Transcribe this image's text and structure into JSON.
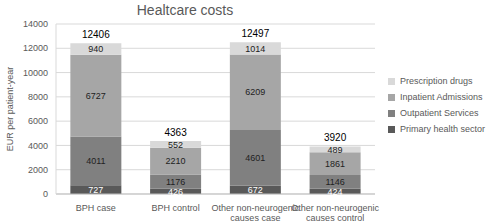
{
  "chart_data": {
    "type": "bar",
    "title": "Healtcare costs",
    "y_label": "EUR per patient-year",
    "categories": [
      "BPH case",
      "BPH control",
      "Other non-neurogenic causes case",
      "Other non-neurogenic causes control"
    ],
    "series": [
      {
        "name": "Primary health sector",
        "color": "#595959",
        "values": [
          727,
          426,
          672,
          424
        ]
      },
      {
        "name": "Outpatient Services",
        "color": "#808080",
        "values": [
          4011,
          1176,
          4601,
          1146
        ]
      },
      {
        "name": "Inpatient Admissions",
        "color": "#a6a6a6",
        "values": [
          6727,
          2210,
          6209,
          1861
        ]
      },
      {
        "name": "Prescription drugs",
        "color": "#d9d9d9",
        "values": [
          940,
          552,
          1014,
          489
        ]
      }
    ],
    "totals": [
      12406,
      4363,
      12497,
      3920
    ],
    "stacked": true,
    "data_labels": true,
    "legend": "right",
    "grid": true,
    "ylim": [
      0,
      14000
    ],
    "yticks": [
      0,
      2000,
      4000,
      6000,
      8000,
      10000,
      12000,
      14000
    ]
  }
}
